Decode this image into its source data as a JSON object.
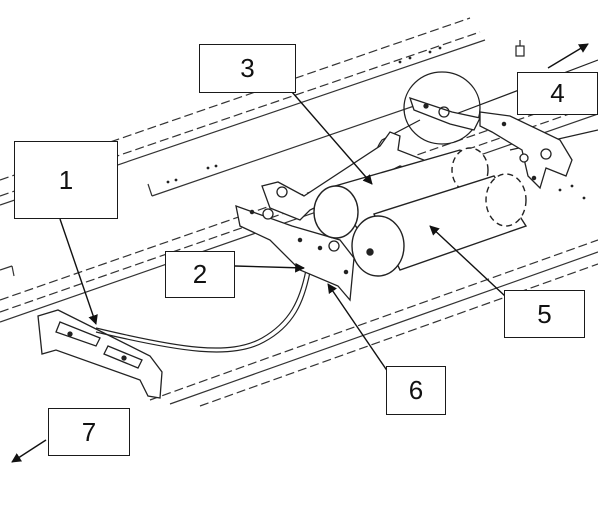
{
  "diagram": {
    "callouts": [
      {
        "id": "1",
        "label": "1"
      },
      {
        "id": "2",
        "label": "2"
      },
      {
        "id": "3",
        "label": "3"
      },
      {
        "id": "4",
        "label": "4"
      },
      {
        "id": "5",
        "label": "5"
      },
      {
        "id": "6",
        "label": "6"
      },
      {
        "id": "7",
        "label": "7"
      }
    ],
    "colors": {
      "line": "#1a1a1a",
      "background": "#ffffff"
    }
  }
}
